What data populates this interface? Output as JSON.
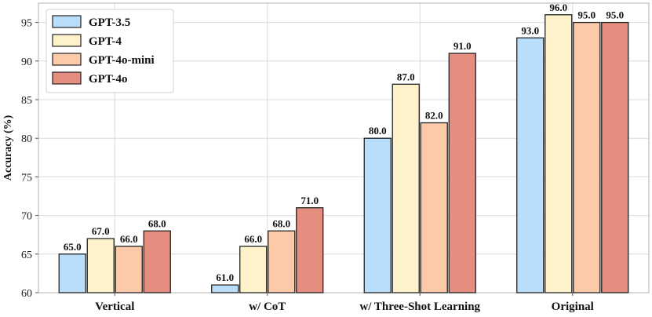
{
  "chart_data": {
    "type": "bar",
    "title": "",
    "xlabel": "",
    "ylabel": "Accuracy (%)",
    "ylim": [
      60,
      97.5
    ],
    "yticks": [
      60,
      65,
      70,
      75,
      80,
      85,
      90,
      95
    ],
    "grid": true,
    "legend_position": "top-left",
    "categories": [
      "Vertical",
      "w/ CoT",
      "w/ Three-Shot Learning",
      "Original"
    ],
    "series": [
      {
        "name": "GPT-3.5",
        "color": "#b9defb",
        "values": [
          65.0,
          61.0,
          80.0,
          93.0
        ]
      },
      {
        "name": "GPT-4",
        "color": "#fdf2c9",
        "values": [
          67.0,
          66.0,
          87.0,
          96.0
        ]
      },
      {
        "name": "GPT-4o-mini",
        "color": "#fcc9a9",
        "values": [
          66.0,
          68.0,
          82.0,
          95.0
        ]
      },
      {
        "name": "GPT-4o",
        "color": "#e58e80",
        "values": [
          68.0,
          71.0,
          91.0,
          95.0
        ]
      }
    ],
    "value_format": "one-decimal"
  }
}
